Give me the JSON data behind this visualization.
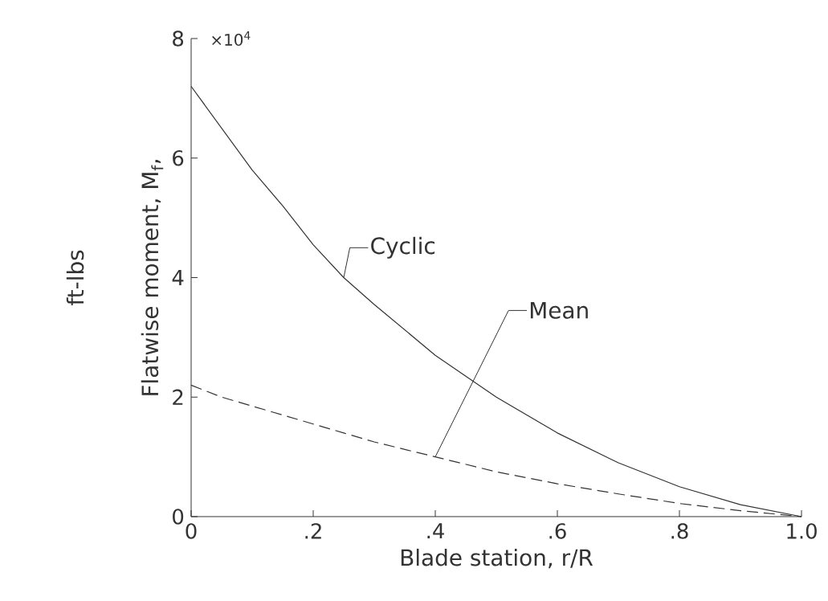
{
  "chart_data": {
    "type": "line",
    "xlabel": "Blade station, r/R",
    "ylabel": "Flatwise moment, M$_{f}$,",
    "y2label": "ft-lbs",
    "annotations": [
      "×10$^{4}$"
    ],
    "x": [
      0,
      0.05,
      0.1,
      0.15,
      0.2,
      0.25,
      0.3,
      0.4,
      0.5,
      0.6,
      0.7,
      0.8,
      0.9,
      1.0
    ],
    "series": [
      {
        "name": "Cyclic",
        "color": "#333333",
        "line_style": "solid",
        "values": [
          7.2,
          6.5,
          5.8,
          5.2,
          4.55,
          4.0,
          3.55,
          2.7,
          2.0,
          1.4,
          0.9,
          0.5,
          0.2,
          0
        ]
      },
      {
        "name": "Mean",
        "color": "#333333",
        "line_style": "dashed",
        "values": [
          2.2,
          2.0,
          1.85,
          1.7,
          1.55,
          1.4,
          1.25,
          1.0,
          0.75,
          0.55,
          0.38,
          0.22,
          0.1,
          0
        ]
      }
    ],
    "xlim": [
      0,
      1.0
    ],
    "ylim": [
      0,
      8
    ],
    "xticks": [
      0,
      {
        "value": 0.2,
        "label": ".2"
      },
      {
        "value": 0.4,
        "label": ".4"
      },
      {
        "value": 0.6,
        "label": ".6"
      },
      {
        "value": 0.8,
        "label": ".8"
      },
      {
        "value": 1.0,
        "label": "1.0"
      }
    ],
    "yticks": [
      0,
      2,
      4,
      6,
      8
    ],
    "grid": false,
    "marker": "none"
  }
}
